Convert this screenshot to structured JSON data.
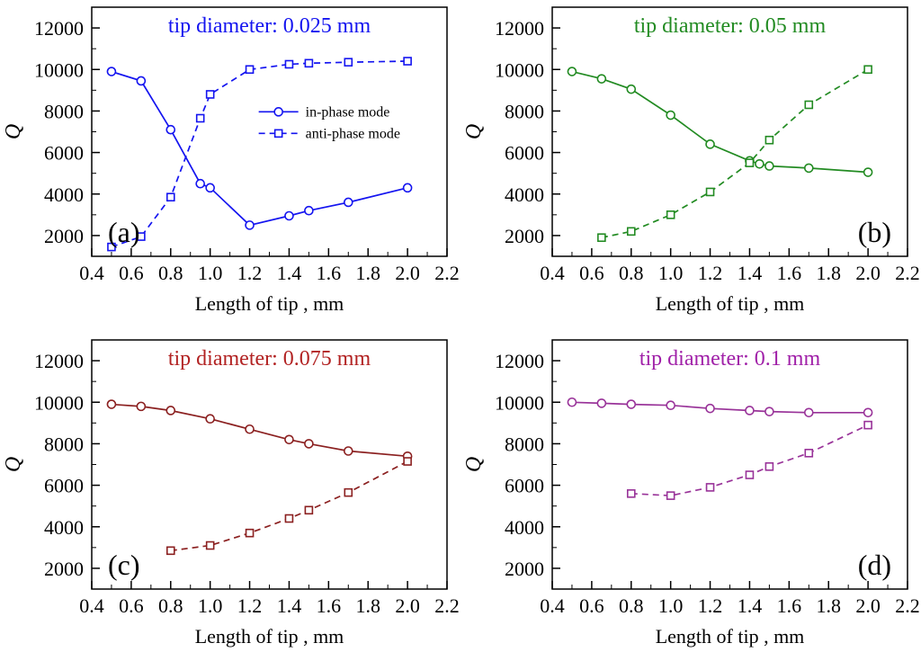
{
  "figure": {
    "background": "#ffffff",
    "description": "Four-panel line chart figure of quality factor Q versus tip length for four tip diameters"
  },
  "chart_data": [
    {
      "id": "a",
      "type": "line",
      "panel_label": "(a)",
      "panel_label_position": "bottom-left",
      "title": "tip diameter: 0.025 mm",
      "title_color": "#1414f0",
      "color": "#1414f0",
      "xlabel": "Length of tip , mm",
      "ylabel": "Q",
      "xlim": [
        0.4,
        2.2
      ],
      "ylim": [
        1000,
        13000
      ],
      "xticks": [
        0.4,
        0.6,
        0.8,
        1.0,
        1.2,
        1.4,
        1.6,
        1.8,
        2.0,
        2.2
      ],
      "yticks": [
        2000,
        4000,
        6000,
        8000,
        10000,
        12000
      ],
      "x_minor_step": 0.1,
      "y_minor_step": 1000,
      "grid": false,
      "legend": {
        "show": true,
        "position": "middle-right"
      },
      "series": [
        {
          "name": "in-phase mode",
          "marker": "circle",
          "line": "solid",
          "x": [
            0.5,
            0.65,
            0.8,
            0.95,
            1.0,
            1.2,
            1.4,
            1.5,
            1.7,
            2.0
          ],
          "y": [
            9900,
            9450,
            7100,
            4500,
            4300,
            2500,
            2950,
            3200,
            3600,
            4300
          ]
        },
        {
          "name": "anti-phase mode",
          "marker": "square",
          "line": "dashed",
          "x": [
            0.5,
            0.65,
            0.8,
            0.95,
            1.0,
            1.2,
            1.4,
            1.5,
            1.7,
            2.0
          ],
          "y": [
            1450,
            1950,
            3850,
            7650,
            8800,
            10000,
            10250,
            10300,
            10350,
            10400
          ]
        }
      ]
    },
    {
      "id": "b",
      "type": "line",
      "panel_label": "(b)",
      "panel_label_position": "bottom-right",
      "title": "tip diameter: 0.05 mm",
      "title_color": "#228B22",
      "color": "#228B22",
      "xlabel": "Length of tip , mm",
      "ylabel": "Q",
      "xlim": [
        0.4,
        2.2
      ],
      "ylim": [
        1000,
        13000
      ],
      "xticks": [
        0.4,
        0.6,
        0.8,
        1.0,
        1.2,
        1.4,
        1.6,
        1.8,
        2.0,
        2.2
      ],
      "yticks": [
        2000,
        4000,
        6000,
        8000,
        10000,
        12000
      ],
      "x_minor_step": 0.1,
      "y_minor_step": 1000,
      "grid": false,
      "legend": {
        "show": false
      },
      "series": [
        {
          "name": "in-phase mode",
          "marker": "circle",
          "line": "solid",
          "x": [
            0.5,
            0.65,
            0.8,
            1.0,
            1.2,
            1.4,
            1.45,
            1.5,
            1.7,
            2.0
          ],
          "y": [
            9900,
            9550,
            9050,
            7800,
            6400,
            5600,
            5450,
            5350,
            5250,
            5050
          ]
        },
        {
          "name": "anti-phase mode",
          "marker": "square",
          "line": "dashed",
          "x": [
            0.65,
            0.8,
            1.0,
            1.2,
            1.4,
            1.5,
            1.7,
            2.0
          ],
          "y": [
            1900,
            2200,
            3000,
            4100,
            5500,
            6600,
            8300,
            10000
          ]
        }
      ]
    },
    {
      "id": "c",
      "type": "line",
      "panel_label": "(c)",
      "panel_label_position": "bottom-left",
      "title": "tip diameter: 0.075 mm",
      "title_color": "#B22222",
      "color": "#8B2020",
      "xlabel": "Length of tip , mm",
      "ylabel": "Q",
      "xlim": [
        0.4,
        2.2
      ],
      "ylim": [
        1000,
        13000
      ],
      "xticks": [
        0.4,
        0.6,
        0.8,
        1.0,
        1.2,
        1.4,
        1.6,
        1.8,
        2.0,
        2.2
      ],
      "yticks": [
        2000,
        4000,
        6000,
        8000,
        10000,
        12000
      ],
      "x_minor_step": 0.1,
      "y_minor_step": 1000,
      "grid": false,
      "legend": {
        "show": false
      },
      "series": [
        {
          "name": "in-phase mode",
          "marker": "circle",
          "line": "solid",
          "x": [
            0.5,
            0.65,
            0.8,
            1.0,
            1.2,
            1.4,
            1.5,
            1.7,
            2.0
          ],
          "y": [
            9900,
            9800,
            9600,
            9200,
            8700,
            8200,
            8000,
            7650,
            7400
          ]
        },
        {
          "name": "anti-phase mode",
          "marker": "square",
          "line": "dashed",
          "x": [
            0.8,
            1.0,
            1.2,
            1.4,
            1.5,
            1.7,
            2.0
          ],
          "y": [
            2850,
            3100,
            3700,
            4400,
            4800,
            5650,
            7150
          ]
        }
      ]
    },
    {
      "id": "d",
      "type": "line",
      "panel_label": "(d)",
      "panel_label_position": "bottom-right",
      "title": "tip diameter: 0.1 mm",
      "title_color": "#A020A8",
      "color": "#993399",
      "xlabel": "Length of tip , mm",
      "ylabel": "Q",
      "xlim": [
        0.4,
        2.2
      ],
      "ylim": [
        1000,
        13000
      ],
      "xticks": [
        0.4,
        0.6,
        0.8,
        1.0,
        1.2,
        1.4,
        1.6,
        1.8,
        2.0,
        2.2
      ],
      "yticks": [
        2000,
        4000,
        6000,
        8000,
        10000,
        12000
      ],
      "x_minor_step": 0.1,
      "y_minor_step": 1000,
      "grid": false,
      "legend": {
        "show": false
      },
      "series": [
        {
          "name": "in-phase mode",
          "marker": "circle",
          "line": "solid",
          "x": [
            0.5,
            0.65,
            0.8,
            1.0,
            1.2,
            1.4,
            1.5,
            1.7,
            2.0
          ],
          "y": [
            10000,
            9950,
            9900,
            9850,
            9700,
            9600,
            9550,
            9500,
            9500
          ]
        },
        {
          "name": "anti-phase mode",
          "marker": "square",
          "line": "dashed",
          "x": [
            0.8,
            1.0,
            1.2,
            1.4,
            1.5,
            1.7,
            2.0
          ],
          "y": [
            5600,
            5500,
            5900,
            6500,
            6900,
            7550,
            8900
          ]
        }
      ]
    }
  ]
}
